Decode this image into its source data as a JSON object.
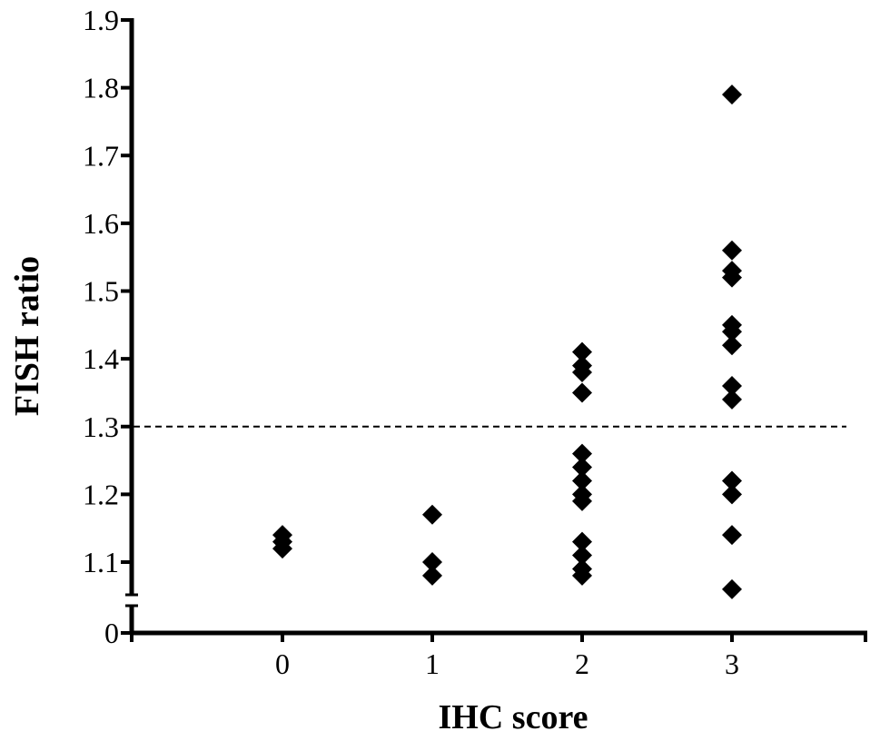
{
  "chart_data": {
    "type": "scatter",
    "title": "",
    "xlabel": "IHC score",
    "ylabel": "FISH ratio",
    "categories": [
      "0",
      "1",
      "2",
      "3"
    ],
    "y_ticks": [
      "0",
      "1.1",
      "1.2",
      "1.3",
      "1.4",
      "1.5",
      "1.6",
      "1.7",
      "1.8",
      "1.9"
    ],
    "ylim": [
      1.05,
      1.9
    ],
    "y_axis_break": true,
    "threshold": 1.3,
    "grid": false,
    "series": [
      {
        "marker": "diamond",
        "color": "#000000",
        "points": [
          {
            "x": 0,
            "y": 1.14
          },
          {
            "x": 0,
            "y": 1.13
          },
          {
            "x": 0,
            "y": 1.12
          },
          {
            "x": 1,
            "y": 1.17
          },
          {
            "x": 1,
            "y": 1.1
          },
          {
            "x": 1,
            "y": 1.08
          },
          {
            "x": 2,
            "y": 1.41
          },
          {
            "x": 2,
            "y": 1.39
          },
          {
            "x": 2,
            "y": 1.38
          },
          {
            "x": 2,
            "y": 1.35
          },
          {
            "x": 2,
            "y": 1.26
          },
          {
            "x": 2,
            "y": 1.24
          },
          {
            "x": 2,
            "y": 1.22
          },
          {
            "x": 2,
            "y": 1.2
          },
          {
            "x": 2,
            "y": 1.19
          },
          {
            "x": 2,
            "y": 1.13
          },
          {
            "x": 2,
            "y": 1.11
          },
          {
            "x": 2,
            "y": 1.09
          },
          {
            "x": 2,
            "y": 1.08
          },
          {
            "x": 3,
            "y": 1.79
          },
          {
            "x": 3,
            "y": 1.56
          },
          {
            "x": 3,
            "y": 1.53
          },
          {
            "x": 3,
            "y": 1.52
          },
          {
            "x": 3,
            "y": 1.45
          },
          {
            "x": 3,
            "y": 1.44
          },
          {
            "x": 3,
            "y": 1.42
          },
          {
            "x": 3,
            "y": 1.36
          },
          {
            "x": 3,
            "y": 1.34
          },
          {
            "x": 3,
            "y": 1.22
          },
          {
            "x": 3,
            "y": 1.2
          },
          {
            "x": 3,
            "y": 1.14
          },
          {
            "x": 3,
            "y": 1.06
          }
        ]
      }
    ]
  }
}
